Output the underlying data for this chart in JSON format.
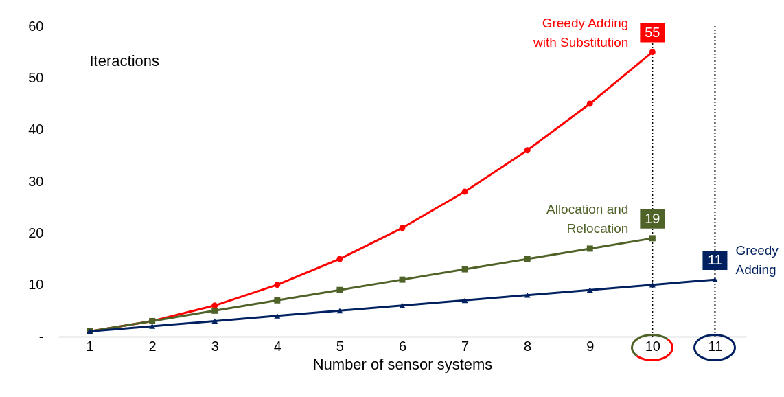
{
  "chart_data": {
    "type": "line",
    "ylabel": "Iteractions",
    "xlabel": "Number of sensor systems",
    "x": [
      1,
      2,
      3,
      4,
      5,
      6,
      7,
      8,
      9,
      10,
      11
    ],
    "xlim": [
      0.5,
      11.5
    ],
    "xticks": [
      1,
      2,
      3,
      4,
      5,
      6,
      7,
      8,
      9,
      10,
      11
    ],
    "ylim": [
      0,
      60
    ],
    "yticks": [
      {
        "value": 0,
        "label": "-"
      },
      10,
      20,
      30,
      40,
      50,
      60
    ],
    "grid": false,
    "legend": "top right",
    "series": [
      {
        "name": "Greedy Adding with Substitution",
        "color": "#ff0000",
        "marker": "circle",
        "values": [
          1,
          3,
          6,
          10,
          15,
          21,
          28,
          36,
          45,
          55,
          null
        ],
        "value_labels": [
          null,
          null,
          null,
          null,
          null,
          null,
          null,
          null,
          null,
          "55",
          null
        ]
      },
      {
        "name": "Allocation and Relocation",
        "color": "#4f6228",
        "marker": "square",
        "values": [
          1,
          3,
          5,
          7,
          9,
          11,
          13,
          15,
          17,
          19,
          null
        ],
        "value_labels": [
          null,
          null,
          null,
          null,
          null,
          null,
          null,
          null,
          null,
          "19",
          null
        ]
      },
      {
        "name": "Greedy Adding",
        "color": "#002060",
        "marker": "triangle",
        "values": [
          1,
          2,
          3,
          4,
          5,
          6,
          7,
          8,
          9,
          10,
          11
        ],
        "value_labels": [
          null,
          null,
          null,
          null,
          null,
          null,
          null,
          null,
          null,
          null,
          "11"
        ]
      }
    ],
    "ref_lines": [
      {
        "axis": "x",
        "value": 10,
        "color": "#000000",
        "line_style": "dotted"
      },
      {
        "axis": "x",
        "value": 11,
        "color": "#000000",
        "line_style": "dotted"
      }
    ]
  }
}
